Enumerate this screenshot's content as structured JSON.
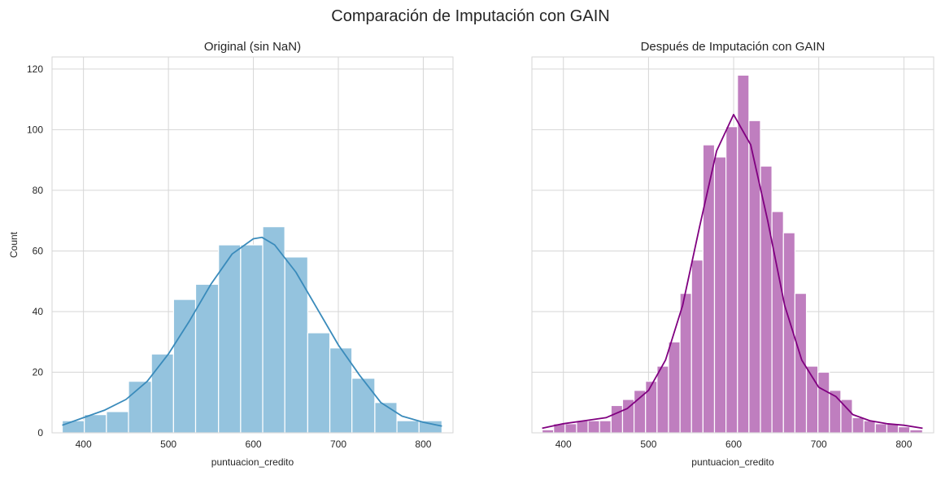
{
  "suptitle": "Comparación de Imputación con GAIN",
  "chart_data": [
    {
      "type": "histogram",
      "title": "Original (sin NaN)",
      "xlabel": "puntuacion_credito",
      "ylabel": "Count",
      "xlim": [
        363,
        835
      ],
      "ylim": [
        0,
        124
      ],
      "xticks": [
        400,
        500,
        600,
        700,
        800
      ],
      "yticks": [
        0,
        20,
        40,
        60,
        80,
        100,
        120
      ],
      "grid": true,
      "color": "#94c3de",
      "edge_color": "#ffffff",
      "kde_color": "#3a8bbb",
      "bin_edges": [
        375,
        401,
        427,
        453,
        480,
        506,
        532,
        559,
        585,
        611,
        637,
        664,
        690,
        716,
        743,
        769,
        795,
        822
      ],
      "counts": [
        4,
        6,
        7,
        17,
        26,
        44,
        49,
        62,
        62,
        68,
        58,
        33,
        28,
        18,
        10,
        4,
        4
      ],
      "kde": {
        "x": [
          375,
          400,
          425,
          450,
          475,
          500,
          525,
          550,
          575,
          600,
          610,
          625,
          650,
          675,
          700,
          725,
          750,
          775,
          800,
          822
        ],
        "y": [
          2.5,
          5,
          7.5,
          11,
          17,
          26,
          37,
          49,
          59,
          64,
          64.5,
          62,
          53,
          41,
          29,
          19,
          10,
          5.5,
          3.5,
          2.2
        ]
      }
    },
    {
      "type": "histogram",
      "title": "Después de Imputación con GAIN",
      "xlabel": "puntuacion_credito",
      "ylabel": "",
      "xlim": [
        363,
        835
      ],
      "ylim": [
        0,
        124
      ],
      "xticks": [
        400,
        500,
        600,
        700,
        800
      ],
      "yticks": [
        0,
        20,
        40,
        60,
        80,
        100,
        120
      ],
      "grid": true,
      "color": "#bf7ebf",
      "edge_color": "#ffffff",
      "kde_color": "#800080",
      "bin_edges": [
        375,
        388.5,
        402,
        415.5,
        429,
        442.5,
        456,
        469.5,
        483,
        496.5,
        510,
        523.5,
        537,
        550.5,
        564,
        577.5,
        591,
        604.5,
        618,
        631.5,
        645,
        658.5,
        672,
        685.5,
        699,
        712.5,
        726,
        739.5,
        753,
        766.5,
        780,
        793.5,
        807,
        822
      ],
      "counts": [
        1,
        3,
        3,
        4,
        4,
        4,
        9,
        11,
        14,
        17,
        22,
        30,
        46,
        57,
        95,
        91,
        101,
        118,
        103,
        88,
        73,
        66,
        46,
        22,
        20,
        14,
        11,
        5,
        4,
        3,
        3,
        2,
        1
      ],
      "kde": {
        "x": [
          375,
          400,
          425,
          450,
          475,
          500,
          520,
          540,
          560,
          580,
          600,
          620,
          640,
          660,
          680,
          700,
          720,
          740,
          760,
          780,
          800,
          822
        ],
        "y": [
          1.5,
          3,
          4,
          5,
          8,
          14,
          24,
          42,
          68,
          93,
          105,
          95,
          70,
          42,
          24,
          15,
          12,
          6,
          4,
          3,
          2.5,
          1.5
        ]
      }
    }
  ]
}
